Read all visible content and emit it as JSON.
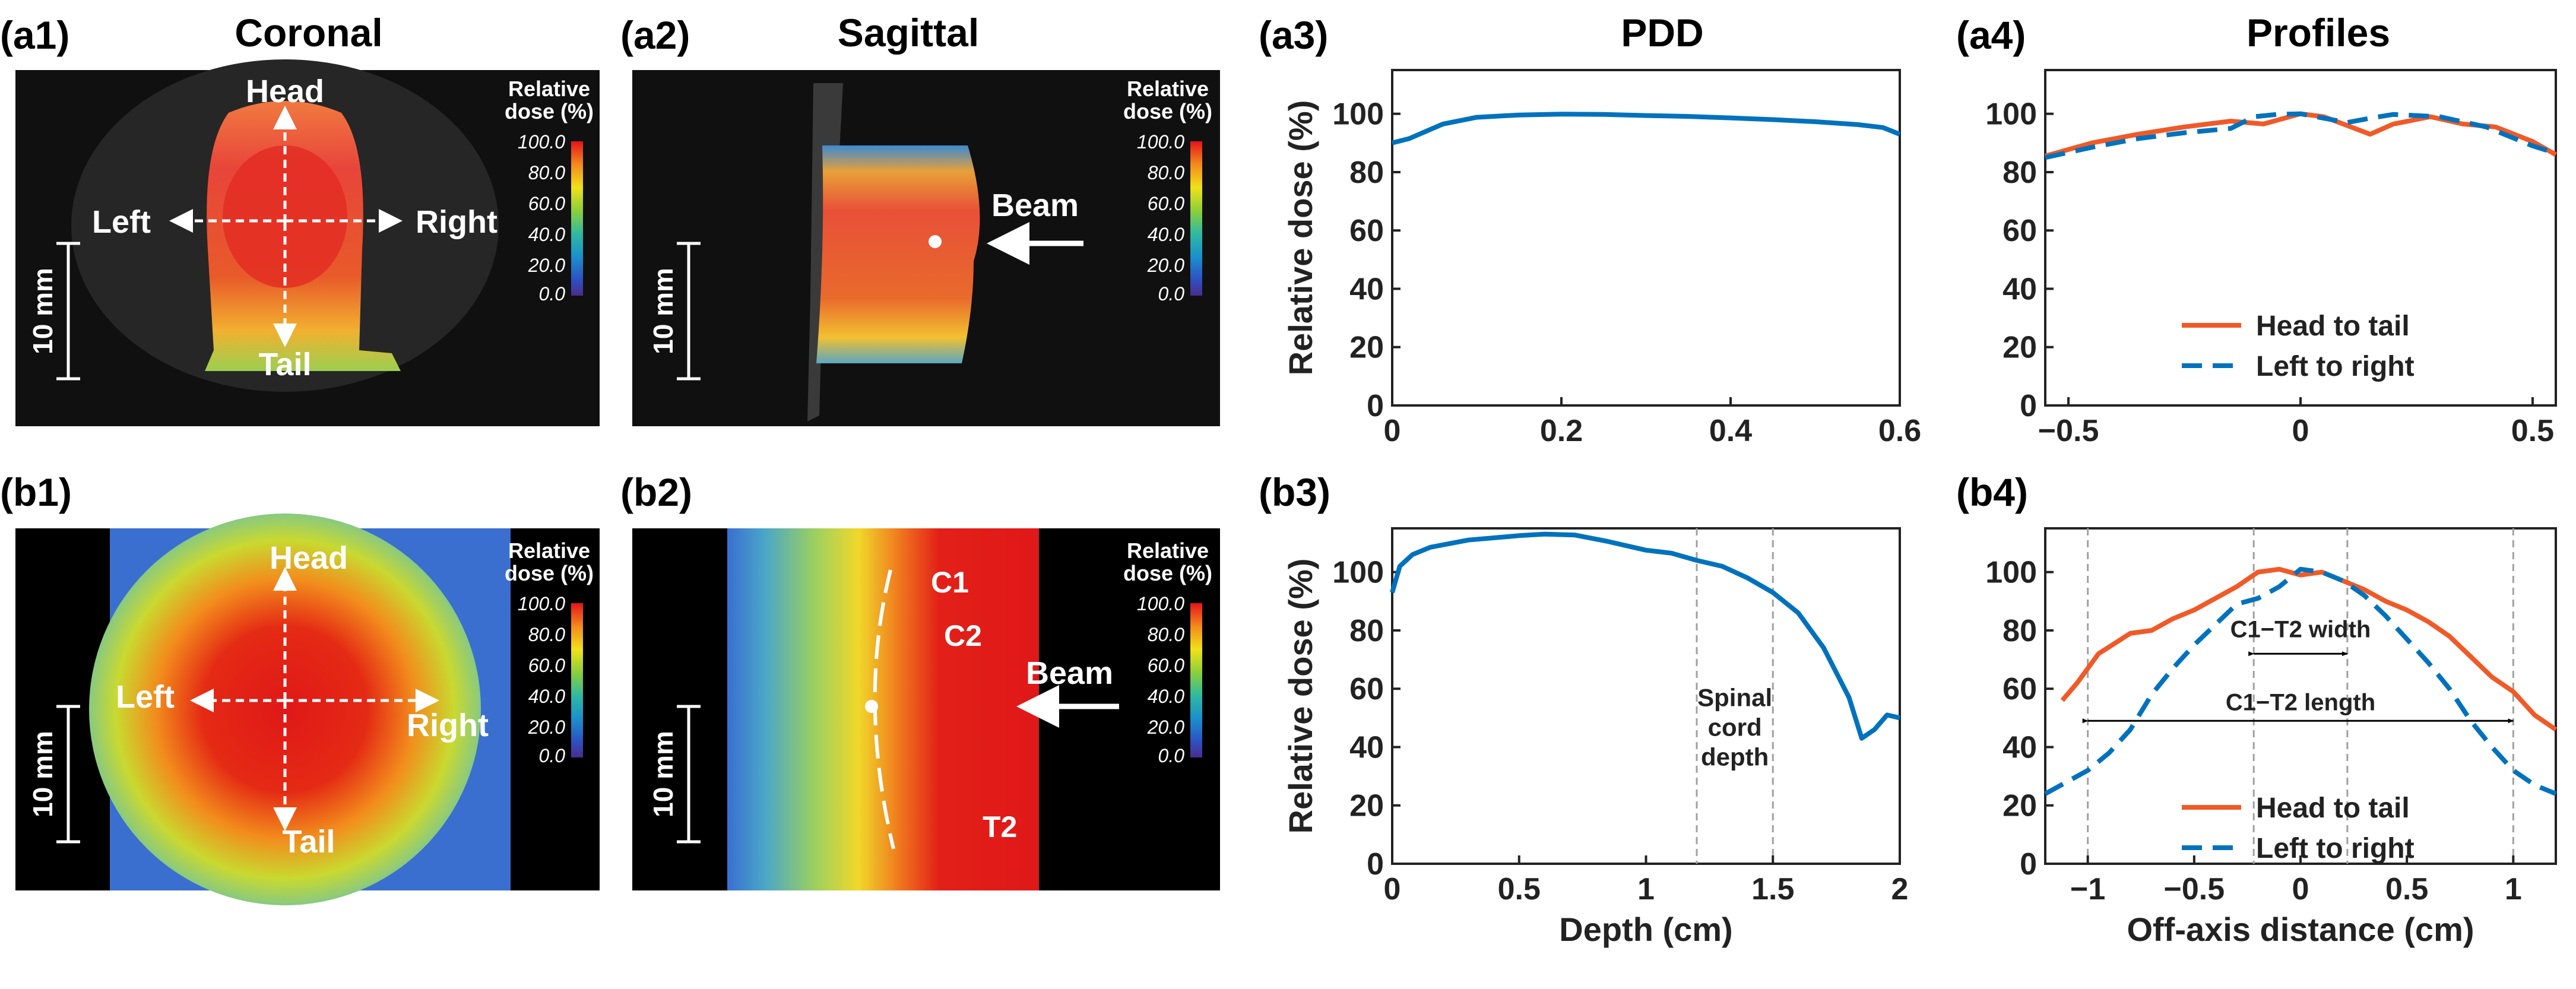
{
  "figure": {
    "panel_labels": [
      "(a1)",
      "(a2)",
      "(a3)",
      "(a4)",
      "(b1)",
      "(b2)",
      "(b3)",
      "(b4)"
    ],
    "column_titles": [
      "Coronal",
      "Sagittal",
      "PDD",
      "Profiles"
    ],
    "colorbar": {
      "title_line1": "Relative",
      "title_line2": "dose (%)",
      "ticks": [
        "100.0",
        "80.0",
        "60.0",
        "40.0",
        "20.0",
        "0.0"
      ]
    },
    "scale_bar_label": "10 mm",
    "image_labels": {
      "head": "Head",
      "tail": "Tail",
      "left": "Left",
      "right": "Right",
      "beam": "Beam",
      "c1": "C1",
      "c2": "C2",
      "t2": "T2"
    },
    "colors": {
      "pdd": "#0072BD",
      "head_to_tail": "#F05A28",
      "left_to_right": "#0072BD"
    }
  },
  "chart_data": [
    {
      "id": "a3",
      "type": "line",
      "title": "PDD",
      "xlabel": "",
      "ylabel": "Relative dose (%)",
      "xlim": [
        0,
        0.6
      ],
      "ylim": [
        0,
        115
      ],
      "xticks": [
        0,
        0.2,
        0.4,
        0.6
      ],
      "xtick_labels": [
        "0",
        "0.2",
        "0.4",
        "0.6"
      ],
      "yticks": [
        0,
        20,
        40,
        60,
        80,
        100
      ],
      "ytick_labels": [
        "0",
        "20",
        "40",
        "60",
        "80",
        "100"
      ],
      "series": [
        {
          "name": "PDD",
          "x": [
            0,
            0.02,
            0.04,
            0.06,
            0.1,
            0.15,
            0.2,
            0.25,
            0.3,
            0.35,
            0.4,
            0.45,
            0.5,
            0.55,
            0.58,
            0.6
          ],
          "y": [
            90,
            91.5,
            94,
            96.5,
            98.8,
            99.6,
            99.9,
            99.8,
            99.4,
            99.1,
            98.6,
            98.0,
            97.3,
            96.3,
            95.3,
            93
          ]
        }
      ]
    },
    {
      "id": "a4",
      "type": "line",
      "title": "Profiles",
      "xlabel": "",
      "ylabel": "",
      "xlim": [
        -0.55,
        0.55
      ],
      "ylim": [
        0,
        115
      ],
      "xticks": [
        -0.5,
        0,
        0.5
      ],
      "xtick_labels": [
        "-0.5",
        "0",
        "0.5"
      ],
      "yticks": [
        0,
        20,
        40,
        60,
        80,
        100
      ],
      "ytick_labels": [
        "0",
        "20",
        "40",
        "60",
        "80",
        "100"
      ],
      "legend": [
        "Head to tail",
        "Left to right"
      ],
      "series": [
        {
          "name": "Head to tail",
          "style": "solid",
          "x": [
            -0.55,
            -0.45,
            -0.35,
            -0.25,
            -0.15,
            -0.08,
            0,
            0.05,
            0.1,
            0.15,
            0.2,
            0.28,
            0.35,
            0.42,
            0.5,
            0.55
          ],
          "y": [
            85.5,
            90,
            93,
            95.5,
            97.5,
            96.5,
            100,
            99,
            96,
            93,
            96.5,
            99,
            96.5,
            95.5,
            90.5,
            86
          ]
        },
        {
          "name": "Left to right",
          "style": "dashed",
          "x": [
            -0.55,
            -0.45,
            -0.35,
            -0.25,
            -0.15,
            -0.1,
            -0.05,
            0,
            0.05,
            0.1,
            0.15,
            0.2,
            0.3,
            0.4,
            0.5,
            0.55
          ],
          "y": [
            85,
            88.5,
            91.5,
            93.5,
            95,
            99,
            99.8,
            100,
            98.5,
            97,
            98.5,
            99.8,
            99,
            95.5,
            89,
            86.5
          ]
        }
      ]
    },
    {
      "id": "b3",
      "type": "line",
      "title": "",
      "xlabel": "Depth (cm)",
      "ylabel": "Relative dose (%)",
      "xlim": [
        0,
        2
      ],
      "ylim": [
        0,
        115
      ],
      "xticks": [
        0,
        0.5,
        1,
        1.5,
        2
      ],
      "xtick_labels": [
        "0",
        "0.5",
        "1",
        "1.5",
        "2"
      ],
      "yticks": [
        0,
        20,
        40,
        60,
        80,
        100
      ],
      "ytick_labels": [
        "0",
        "20",
        "40",
        "60",
        "80",
        "100"
      ],
      "vlines": [
        1.2,
        1.5
      ],
      "annotation": [
        "Spinal",
        "cord",
        "depth"
      ],
      "series": [
        {
          "name": "PDD",
          "x": [
            0,
            0.03,
            0.08,
            0.15,
            0.3,
            0.5,
            0.6,
            0.72,
            0.85,
            1.0,
            1.1,
            1.2,
            1.3,
            1.4,
            1.5,
            1.6,
            1.7,
            1.8,
            1.85,
            1.9,
            1.95,
            2.0
          ],
          "y": [
            93,
            102,
            106,
            108.5,
            111,
            112.5,
            113,
            112.7,
            110.5,
            107.5,
            106.5,
            104,
            102,
            98,
            93,
            86,
            74,
            57,
            43,
            46,
            51,
            50
          ]
        }
      ]
    },
    {
      "id": "b4",
      "type": "line",
      "title": "",
      "xlabel": "Off-axis distance (cm)",
      "ylabel": "",
      "xlim": [
        -1.2,
        1.2
      ],
      "ylim": [
        0,
        115
      ],
      "xticks": [
        -1,
        -0.5,
        0,
        0.5,
        1
      ],
      "xtick_labels": [
        "-1",
        "-0.5",
        "0",
        "0.5",
        "1"
      ],
      "yticks": [
        0,
        20,
        40,
        60,
        80,
        100
      ],
      "ytick_labels": [
        "0",
        "20",
        "40",
        "60",
        "80",
        "100"
      ],
      "vlines": [
        -1,
        -0.22,
        0.22,
        1
      ],
      "annotations": {
        "width": "C1−T2 width",
        "length": "C1−T2 length"
      },
      "legend": [
        "Head to tail",
        "Left to right"
      ],
      "series": [
        {
          "name": "Head to tail",
          "style": "solid",
          "x": [
            -1.12,
            -1.05,
            -0.95,
            -0.8,
            -0.7,
            -0.6,
            -0.5,
            -0.4,
            -0.3,
            -0.2,
            -0.1,
            0,
            0.1,
            0.2,
            0.3,
            0.4,
            0.5,
            0.6,
            0.7,
            0.8,
            0.9,
            1.0,
            1.1,
            1.2
          ],
          "y": [
            56,
            62,
            72,
            79,
            80,
            84,
            87,
            91,
            95,
            100,
            101,
            99,
            100,
            97,
            94,
            90,
            87,
            83,
            78,
            71,
            64,
            59,
            51,
            46
          ]
        },
        {
          "name": "Left to right",
          "style": "dashed",
          "x": [
            -1.2,
            -1.1,
            -1.0,
            -0.9,
            -0.8,
            -0.7,
            -0.6,
            -0.5,
            -0.4,
            -0.3,
            -0.2,
            -0.1,
            0,
            0.1,
            0.2,
            0.3,
            0.4,
            0.5,
            0.6,
            0.7,
            0.8,
            0.9,
            1.0,
            1.1,
            1.2
          ],
          "y": [
            24,
            28,
            32,
            38,
            46,
            58,
            67,
            75,
            82,
            89,
            91,
            95,
            101,
            100,
            97,
            92,
            85,
            77,
            69,
            60,
            49,
            40,
            32,
            27,
            24
          ]
        }
      ]
    }
  ]
}
